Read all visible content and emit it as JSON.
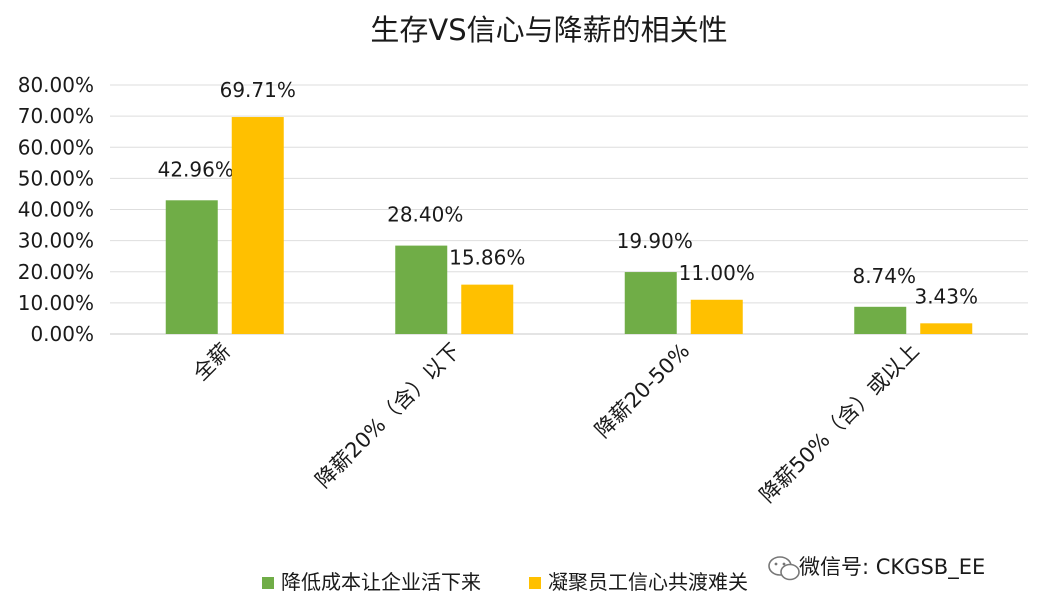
{
  "chart_data": {
    "type": "bar",
    "title": "生存VS信心与降薪的相关性",
    "categories": [
      "全薪",
      "降薪20%（含）以下",
      "降薪20-50%",
      "降薪50%（含）或以上"
    ],
    "series": [
      {
        "name": "降低成本让企业活下来",
        "values": [
          42.96,
          28.4,
          19.9,
          8.74
        ],
        "labels": [
          "42.96%",
          "28.40%",
          "19.90%",
          "8.74%"
        ]
      },
      {
        "name": "凝聚员工信心共渡难关",
        "values": [
          69.71,
          15.86,
          11.0,
          3.43
        ],
        "labels": [
          "69.71%",
          "15.86%",
          "11.00%",
          "3.43%"
        ]
      }
    ],
    "ylim": [
      0,
      80
    ],
    "yticks": [
      "0.00%",
      "10.00%",
      "20.00%",
      "30.00%",
      "40.00%",
      "50.00%",
      "60.00%",
      "70.00%",
      "80.00%"
    ],
    "grid": true,
    "legend": "bottom",
    "colors": [
      "#70ad47",
      "#ffc000"
    ]
  },
  "watermark": "微信号: CKGSB_EE",
  "watermark_icon": "wechat-icon"
}
